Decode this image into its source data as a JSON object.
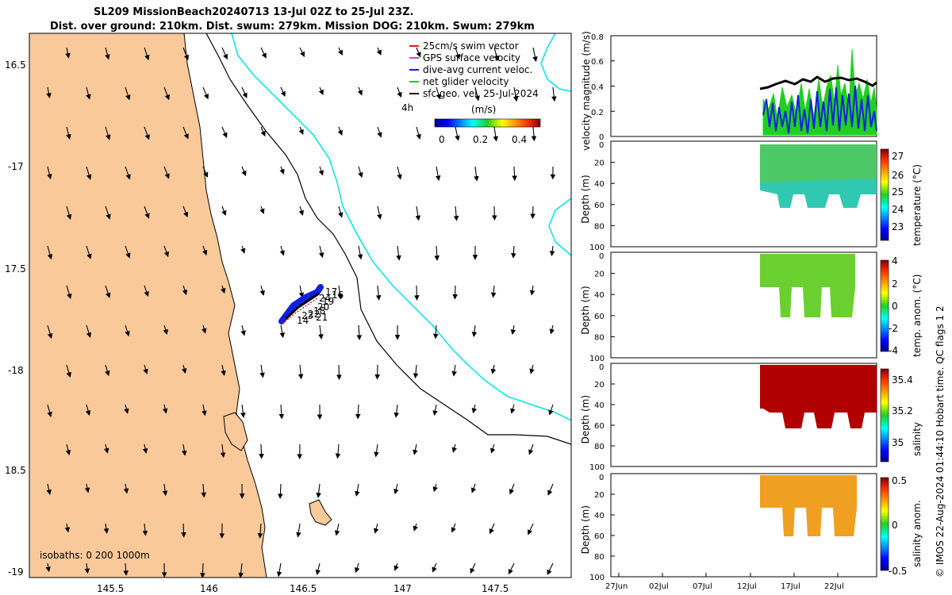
{
  "title": {
    "line1": "SL209 MissionBeach20240713 13-Jul 02Z to 25-Jul 23Z.",
    "line2": "Dist. over ground: 210km. Dist. swum: 279km. Mission DOG: 210km. Swum: 279km"
  },
  "map": {
    "lat_ticks": [
      "16.5",
      "-17",
      "17.5",
      "-18",
      "18.5",
      "-19"
    ],
    "lon_ticks": [
      "145.5",
      "146",
      "146.5",
      "147",
      "147.5"
    ],
    "legend": [
      {
        "label": "25cm/s swim vector",
        "color": "#e02020"
      },
      {
        "label": "GPS surface velocity",
        "color": "#d040d0"
      },
      {
        "label": "dive-avg current veloc.",
        "color": "#1020e0"
      },
      {
        "label": "net glider velocity",
        "color": "#20d020"
      },
      {
        "label": "sfc geo. vel. 25-Jul-2024",
        "color": "#000000"
      }
    ],
    "colorbar": {
      "unit": "(m/s)",
      "ticks": [
        "0",
        "0.2",
        "0.4"
      ]
    },
    "label_4h": "4h",
    "isobaths": "isobaths: 0   200  1000m",
    "track_labels": [
      "17",
      "16",
      "24",
      "19",
      "20",
      "18",
      "21",
      "14",
      "23",
      "22"
    ],
    "land_color": "#f9c99a",
    "isobath_color": "#00e5e5"
  },
  "panels": {
    "velocity": {
      "ylabel": "velocity magnitude (m/s)",
      "yticks": [
        "0",
        "0.2",
        "0.4",
        "0.6",
        "0.8"
      ]
    },
    "depth_ylabel": "Depth (m)",
    "depth_ticks": [
      "0",
      "20",
      "40",
      "60",
      "80",
      "100"
    ],
    "temp": {
      "cbar_label": "temperature (°C)",
      "cbar_ticks": [
        "27",
        "26",
        "25",
        "24",
        "23"
      ]
    },
    "temp_anom": {
      "cbar_label": "temp. anom. (°C)",
      "cbar_ticks": [
        "4",
        "2",
        "0",
        "-2",
        "-4"
      ]
    },
    "salinity": {
      "cbar_label": "salinity",
      "cbar_ticks": [
        "35.4",
        "35.2",
        "35"
      ]
    },
    "sal_anom": {
      "cbar_label": "salinity anom.",
      "cbar_ticks": [
        "0.5",
        "0",
        "-0.5"
      ]
    },
    "x_ticks": [
      "27Jun",
      "02Jul",
      "07Jul",
      "12Jul",
      "17Jul",
      "22Jul"
    ]
  },
  "credit": "© IMOS 22-Aug-2024 01:44:10 Hobart time. QC flags 1  2"
}
